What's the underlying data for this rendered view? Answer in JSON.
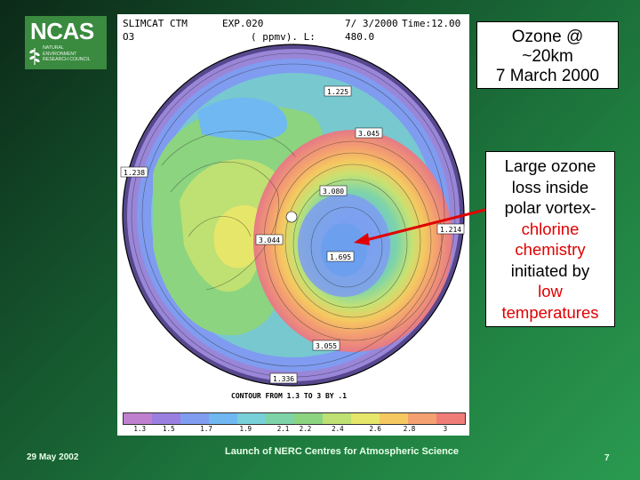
{
  "logo": {
    "word": "NCAS",
    "lines": [
      "NATURAL",
      "ENVIRONMENT",
      "RESEARCH COUNCIL"
    ]
  },
  "figure": {
    "header_left_1": "SLIMCAT CTM",
    "header_exp": "EXP.020",
    "header_date": "7/ 3/2000",
    "header_time": "Time:12.00",
    "header_left_2": "O3",
    "header_units": "( ppmv). L:",
    "header_level": "480.0",
    "contour_note": "CONTOUR FROM 1.3 TO 3 BY .1",
    "scale_ticks": [
      "1.3",
      "1.5",
      "1.7",
      "1.9",
      "2.1",
      "2.2",
      "2.4",
      "2.6",
      "2.8",
      "3"
    ],
    "scale_colors": [
      "#c080d0",
      "#9a7ee0",
      "#7f9cf0",
      "#6fb8f2",
      "#78d0d8",
      "#7ed4a8",
      "#8cd480",
      "#bfe072",
      "#e6e66a",
      "#f5c860",
      "#f4a070",
      "#f07c78"
    ],
    "map_labels": [
      "1.225",
      "3.045",
      "3.080",
      "3.044",
      "1.695",
      "3.055",
      "1.336",
      "1.214",
      "1.238"
    ]
  },
  "title_box": {
    "line1": "Ozone @",
    "line2": "~20km",
    "line3": "7 March 2000"
  },
  "note_box": {
    "line1": "Large ozone",
    "line2": "loss inside",
    "line3": "polar vortex-",
    "line4": "chlorine",
    "line5": "chemistry",
    "line6": "initiated by",
    "line7": "low",
    "line8": "temperatures"
  },
  "footer": {
    "date": "29 May 2002",
    "title": "Launch of NERC Centres for Atmospheric Science",
    "page": "7"
  },
  "colors": {
    "annotation_red": "#e00000",
    "background_dark": "#0c2a18",
    "background_light": "#2a9a50"
  }
}
